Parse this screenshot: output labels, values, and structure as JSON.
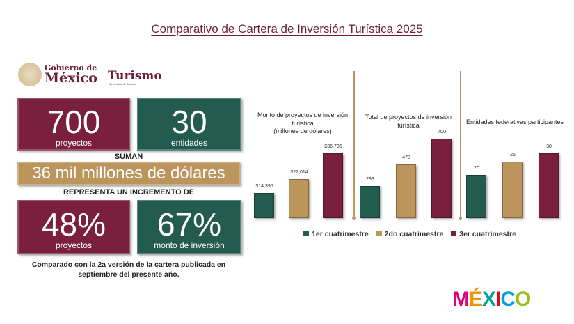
{
  "title": "Comparativo de Cartera de Inversión Turística 2025",
  "logo": {
    "line1": "Gobierno de",
    "line2": "México",
    "dept": "Turismo",
    "dept_sub": "Secretaría de Turismo"
  },
  "stats": {
    "projects": {
      "value": "700",
      "label": "proyectos"
    },
    "entities": {
      "value": "30",
      "label": "entidades"
    },
    "suman": "SUMAN",
    "total": "36 mil millones de dólares",
    "increment_label": "REPRESENTA UN INCREMENTO DE",
    "inc_projects": {
      "value": "48%",
      "label": "proyectos"
    },
    "inc_amount": {
      "value": "67%",
      "label": "monto de inversión"
    },
    "note": "Comparado con la 2a versión de la cartera publicada en septiembre del presente año."
  },
  "colors": {
    "red": "#7a1f3d",
    "green": "#235b4e",
    "gold": "#bc955c"
  },
  "chart_data": [
    {
      "type": "bar",
      "title": "Monto de proyectos de inversión turística",
      "subtitle": "(millones de dólares)",
      "categories": [
        "1er cuatrimestre",
        "2do cuatrimestre",
        "3er cuatrimestre"
      ],
      "values": [
        14395,
        22014,
        36736
      ],
      "labels": [
        "$14,395",
        "$22,014",
        "$36,736"
      ]
    },
    {
      "type": "bar",
      "title": "Total de proyectos de inversión turística",
      "categories": [
        "1er cuatrimestre",
        "2do cuatrimestre",
        "3er cuatrimestre"
      ],
      "values": [
        283,
        473,
        700
      ],
      "labels": [
        "283",
        "473",
        "700"
      ]
    },
    {
      "type": "bar",
      "title": "Entidades federativas participantes",
      "categories": [
        "1er cuatrimestre",
        "2do cuatrimestre",
        "3er cuatrimestre"
      ],
      "values": [
        20,
        26,
        30
      ],
      "labels": [
        "20",
        "26",
        "30"
      ]
    }
  ],
  "legend": [
    "1er cuatrimestre",
    "2do cuatrimestre",
    "3er cuatrimestre"
  ],
  "brand": {
    "letters": [
      "M",
      "É",
      "X",
      "I",
      "C",
      "O"
    ],
    "colors": [
      "#e4007c",
      "#f39200",
      "#00a19a",
      "#e30613",
      "#009fe3",
      "#95c11f"
    ]
  }
}
